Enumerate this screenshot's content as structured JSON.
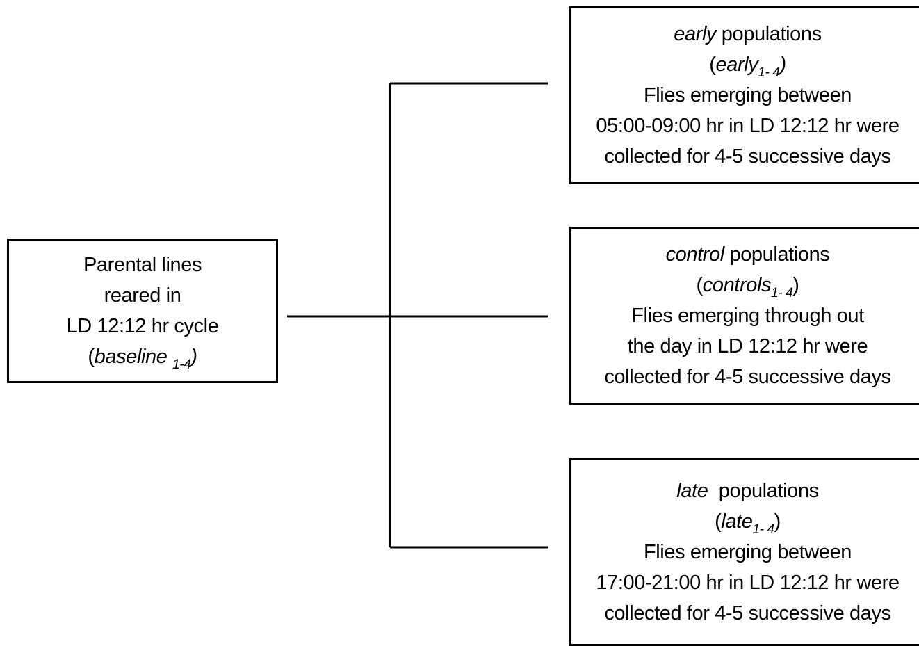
{
  "nodes": [
    {
      "lines": [
        [
          {
            "text": "Parental lines"
          }
        ],
        [
          {
            "text": "reared in"
          }
        ],
        [
          {
            "text": "LD 12:12 hr cycle"
          }
        ],
        [
          {
            "text": "("
          },
          {
            "text": "baseline ",
            "italic": true
          },
          {
            "text": "1-4",
            "italic": true,
            "sub": true
          },
          {
            "text": ")",
            "italic": true
          }
        ]
      ]
    },
    {
      "lines": [
        [
          {
            "text": "early",
            "italic": true
          },
          {
            "text": " populations"
          }
        ],
        [
          {
            "text": "("
          },
          {
            "text": "early",
            "italic": true
          },
          {
            "text": "1- 4",
            "italic": true,
            "sub": true
          },
          {
            "text": ")",
            "italic": true
          }
        ],
        [
          {
            "text": "Flies emerging between"
          }
        ],
        [
          {
            "text": "05:00-09:00 hr in LD 12:12 hr were"
          }
        ],
        [
          {
            "text": "collected for 4-5 successive days"
          }
        ]
      ]
    },
    {
      "lines": [
        [
          {
            "text": "control",
            "italic": true
          },
          {
            "text": " populations"
          }
        ],
        [
          {
            "text": "("
          },
          {
            "text": "controls",
            "italic": true
          },
          {
            "text": "1- 4",
            "italic": true,
            "sub": true
          },
          {
            "text": ")"
          }
        ],
        [
          {
            "text": "Flies emerging through out"
          }
        ],
        [
          {
            "text": "the day in LD 12:12 hr were"
          }
        ],
        [
          {
            "text": "collected for 4-5 successive days"
          }
        ]
      ]
    },
    {
      "lines": [
        [
          {
            "text": "late",
            "italic": true
          },
          {
            "text": "  populations"
          }
        ],
        [
          {
            "text": "("
          },
          {
            "text": "late",
            "italic": true
          },
          {
            "text": "1- 4",
            "italic": true,
            "sub": true
          },
          {
            "text": ")"
          }
        ],
        [
          {
            "text": "Flies emerging between"
          }
        ],
        [
          {
            "text": "17:00-21:00 hr in LD 12:12 hr were"
          }
        ],
        [
          {
            "text": "collected for 4-5 successive days"
          }
        ]
      ]
    }
  ]
}
